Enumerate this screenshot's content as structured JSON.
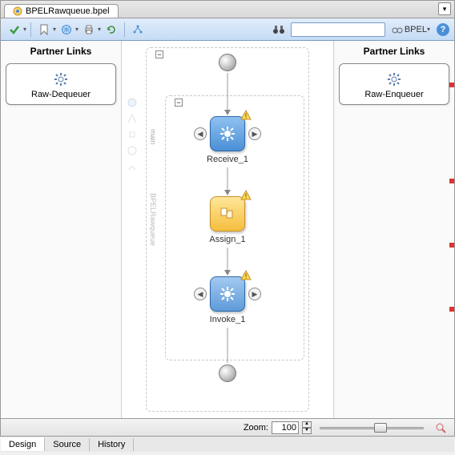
{
  "tab": {
    "title": "BPELRawqueue.bpel"
  },
  "toolbar": {
    "bpel_label": "BPEL",
    "search_placeholder": ""
  },
  "partner_left": {
    "title": "Partner Links",
    "items": [
      {
        "label": "Raw-Dequeuer"
      }
    ]
  },
  "partner_right": {
    "title": "Partner Links",
    "items": [
      {
        "label": "Raw-Enqueuer"
      }
    ]
  },
  "canvas": {
    "side_label_1": "main",
    "side_label_2": "BPELRawqueue",
    "activities": {
      "receive": {
        "label": "Receive_1",
        "color_top": "#8fc1f0",
        "color_bottom": "#4a8fd6",
        "has_warning": true
      },
      "assign": {
        "label": "Assign_1",
        "color_top": "#ffe69a",
        "color_bottom": "#f5be3e",
        "has_warning": true
      },
      "invoke": {
        "label": "Invoke_1",
        "color_top": "#a3c9f0",
        "color_bottom": "#5e9bd9",
        "has_warning": true
      }
    }
  },
  "footer": {
    "zoom_label": "Zoom:",
    "zoom_value": "100",
    "slider_pos_pct": 52
  },
  "bottom_tabs": [
    {
      "label": "Design",
      "active": true
    },
    {
      "label": "Source",
      "active": false
    },
    {
      "label": "History",
      "active": false
    }
  ],
  "red_markers": [
    0,
    120,
    200,
    280
  ]
}
